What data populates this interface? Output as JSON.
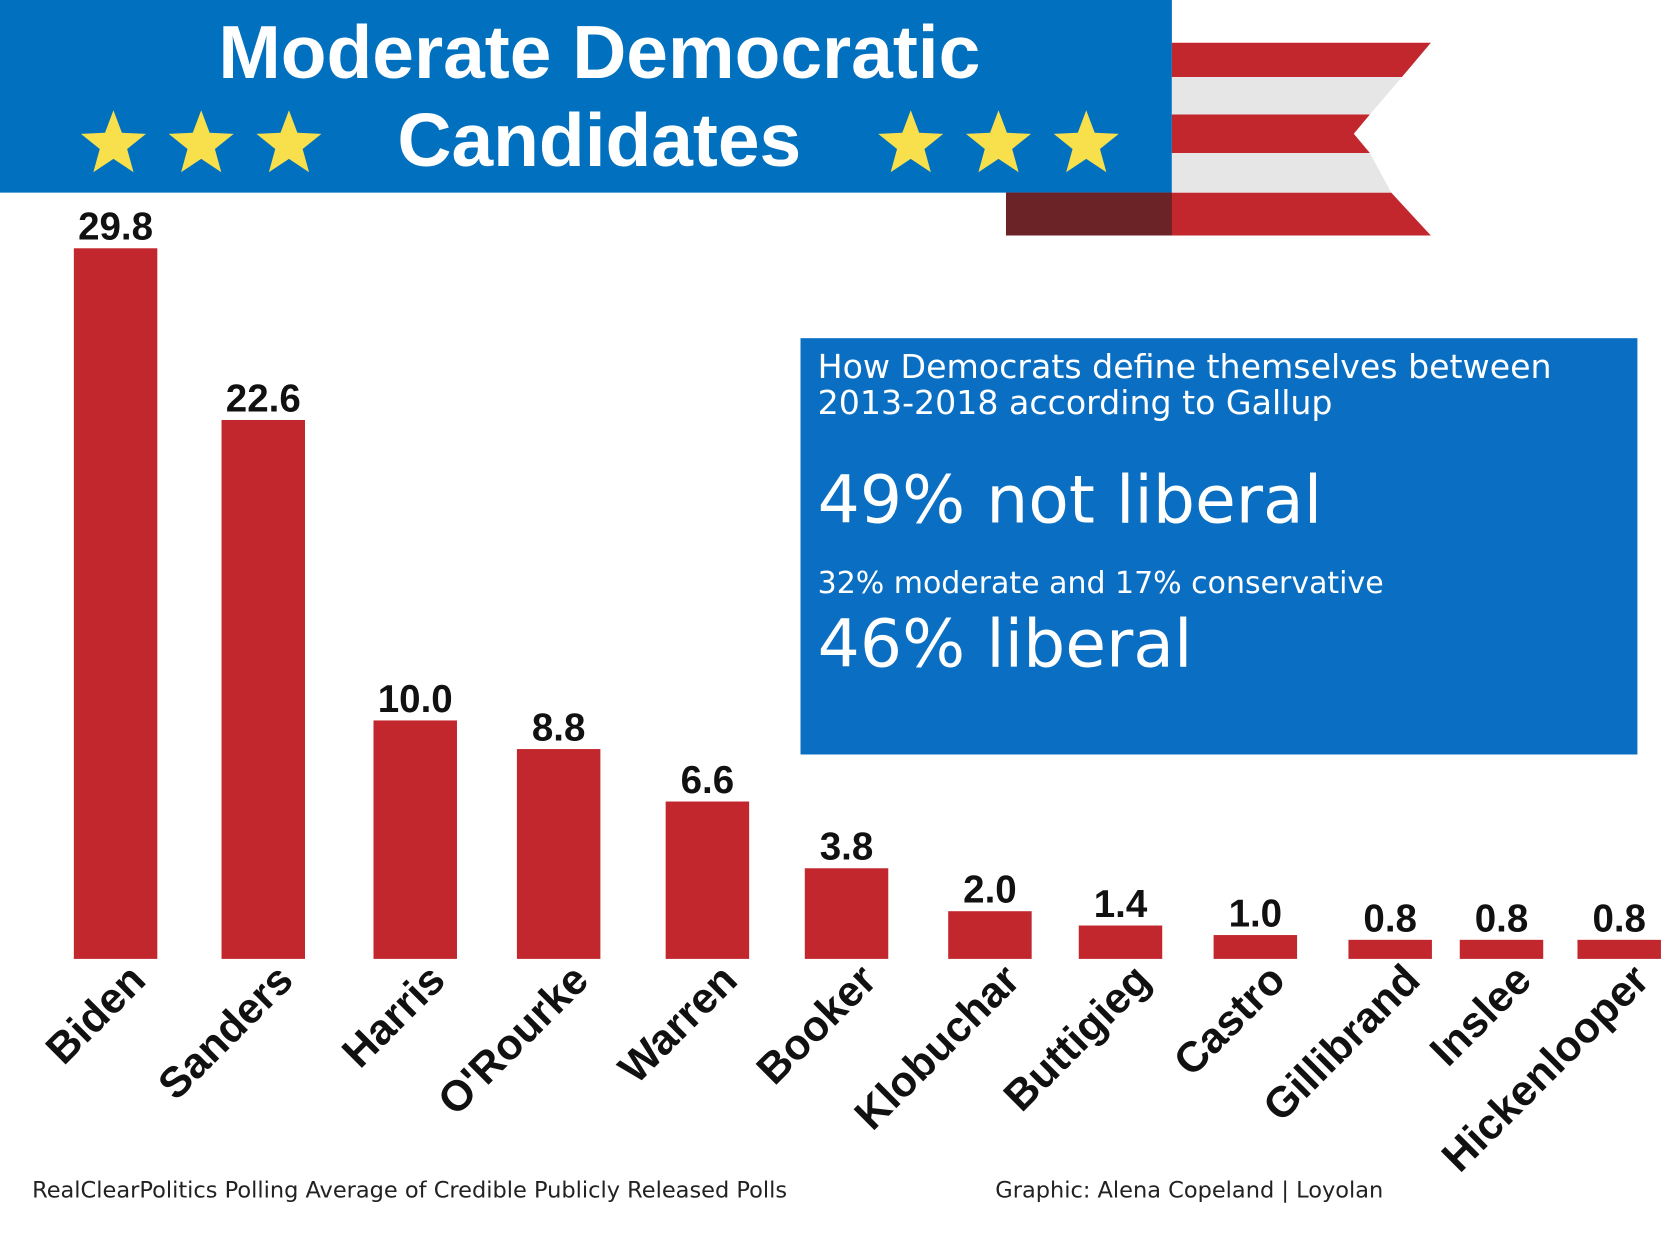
{
  "chart_data": {
    "type": "bar",
    "title": "Moderate Democratic Candidates",
    "categories": [
      "Biden",
      "Sanders",
      "Harris",
      "O'Rourke",
      "Warren",
      "Booker",
      "Klobuchar",
      "Buttigieg",
      "Castro",
      "Gillibrand",
      "Inslee",
      "Hickenlooper"
    ],
    "values": [
      29.8,
      22.6,
      10.0,
      8.8,
      6.6,
      3.8,
      2.0,
      1.4,
      1.0,
      0.8,
      0.8,
      0.8
    ],
    "value_labels": [
      "29.8",
      "22.6",
      "10.0",
      "8.8",
      "6.6",
      "3.8",
      "2.0",
      "1.4",
      "1.0",
      "0.8",
      "0.8",
      "0.8"
    ],
    "color": "#c1272d",
    "annotation": {
      "heading": "How Democrats define themselves between 2013-2018 according to Gallup",
      "line1": "49% not liberal",
      "line2": "32% moderate and 17% conservative",
      "line3": "46% liberal"
    },
    "source": "RealClearPolitics Polling Average of Credible Publicly Released Polls",
    "credit": "Graphic: Alena Copeland | Loyolan"
  }
}
